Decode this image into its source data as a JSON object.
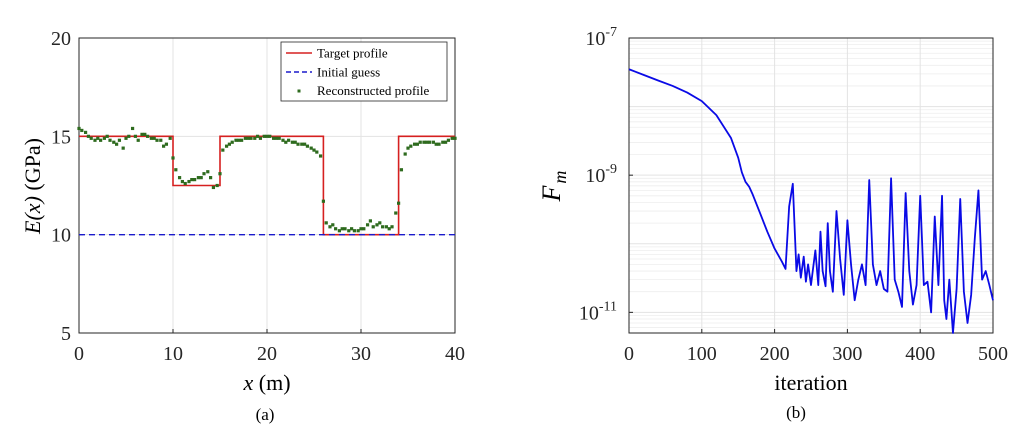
{
  "chart_data": [
    {
      "type": "line",
      "panel_label": "(a)",
      "xlabel_var": "x",
      "xlabel_unit": " (m)",
      "ylabel_var": "E(x)",
      "ylabel_unit": " (GPa)",
      "xlim": [
        0,
        40
      ],
      "ylim": [
        5,
        20
      ],
      "xticks": [
        0,
        10,
        20,
        30,
        40
      ],
      "yticks": [
        5,
        10,
        15,
        20
      ],
      "grid": true,
      "legend_position": "top-right",
      "colors": {
        "target": "#d62020",
        "initial": "#1a1acc",
        "reconstructed": "#2e6b1e"
      },
      "series": [
        {
          "name": "Target profile",
          "style": "solid-line",
          "x": [
            0,
            10,
            10,
            15,
            15,
            26,
            26,
            34,
            34,
            40
          ],
          "y": [
            15,
            15,
            12.5,
            12.5,
            15,
            15,
            10,
            10,
            15,
            15
          ]
        },
        {
          "name": "Initial guess",
          "style": "dashed-line",
          "x": [
            0,
            40
          ],
          "y": [
            10,
            10
          ]
        },
        {
          "name": "Reconstructed profile",
          "style": "dots",
          "x": [
            0,
            0.3,
            0.7,
            1.0,
            1.3,
            1.7,
            2.0,
            2.3,
            2.7,
            3.0,
            3.3,
            3.7,
            4.0,
            4.3,
            4.7,
            5.0,
            5.3,
            5.7,
            6.0,
            6.3,
            6.7,
            7.0,
            7.3,
            7.7,
            8.0,
            8.3,
            8.7,
            9.0,
            9.3,
            9.7,
            10.0,
            10.3,
            10.7,
            11.0,
            11.3,
            11.7,
            12.0,
            12.3,
            12.7,
            13.0,
            13.3,
            13.7,
            14.0,
            14.3,
            14.7,
            15.0,
            15.3,
            15.7,
            16.0,
            16.3,
            16.7,
            17.0,
            17.3,
            17.7,
            18.0,
            18.3,
            18.7,
            19.0,
            19.3,
            19.7,
            20.0,
            20.3,
            20.7,
            21.0,
            21.3,
            21.7,
            22.0,
            22.3,
            22.7,
            23.0,
            23.3,
            23.7,
            24.0,
            24.3,
            24.7,
            25.0,
            25.3,
            25.7,
            26.0,
            26.3,
            26.7,
            27.0,
            27.3,
            27.7,
            28.0,
            28.3,
            28.7,
            29.0,
            29.3,
            29.7,
            30.0,
            30.3,
            30.7,
            31.0,
            31.3,
            31.7,
            32.0,
            32.3,
            32.7,
            33.0,
            33.3,
            33.7,
            34.0,
            34.3,
            34.7,
            35.0,
            35.3,
            35.7,
            36.0,
            36.3,
            36.7,
            37.0,
            37.3,
            37.7,
            38.0,
            38.3,
            38.7,
            39.0,
            39.3,
            39.7,
            40.0
          ],
          "y": [
            15.4,
            15.3,
            15.2,
            15.0,
            14.9,
            14.8,
            14.9,
            14.8,
            14.9,
            15.0,
            14.8,
            14.7,
            14.6,
            14.8,
            14.4,
            14.9,
            15.0,
            15.4,
            15.0,
            14.8,
            15.1,
            15.1,
            15.0,
            14.9,
            14.9,
            14.8,
            14.8,
            14.5,
            14.6,
            14.9,
            13.9,
            13.3,
            12.9,
            12.7,
            12.6,
            12.7,
            12.8,
            12.8,
            12.9,
            12.9,
            13.1,
            13.2,
            12.9,
            12.4,
            12.5,
            13.1,
            14.3,
            14.5,
            14.6,
            14.7,
            14.8,
            14.8,
            14.8,
            14.9,
            14.9,
            14.9,
            14.9,
            15.0,
            14.9,
            15.0,
            15.0,
            15.0,
            14.9,
            14.9,
            14.9,
            14.8,
            14.7,
            14.8,
            14.7,
            14.7,
            14.6,
            14.6,
            14.6,
            14.5,
            14.4,
            14.3,
            14.2,
            14.0,
            11.7,
            10.6,
            10.4,
            10.5,
            10.3,
            10.2,
            10.3,
            10.3,
            10.2,
            10.3,
            10.2,
            10.2,
            10.3,
            10.3,
            10.5,
            10.7,
            10.4,
            10.5,
            10.6,
            10.4,
            10.4,
            10.3,
            10.4,
            11.1,
            11.6,
            13.3,
            14.1,
            14.4,
            14.5,
            14.6,
            14.6,
            14.7,
            14.7,
            14.7,
            14.7,
            14.7,
            14.6,
            14.6,
            14.7,
            14.7,
            14.8,
            14.9,
            14.9
          ]
        }
      ]
    },
    {
      "type": "line",
      "panel_label": "(b)",
      "xlabel": "iteration",
      "ylabel_base": "F",
      "ylabel_sub": "m",
      "xlim": [
        0,
        500
      ],
      "ylim": [
        5e-12,
        1e-07
      ],
      "yscale": "log",
      "xticks": [
        0,
        100,
        200,
        300,
        400,
        500
      ],
      "yticks": [
        {
          "base": "10",
          "exp": "-7",
          "value": 1e-07
        },
        {
          "base": "10",
          "exp": "-9",
          "value": 1e-09
        },
        {
          "base": "10",
          "exp": "-11",
          "value": 1e-11
        }
      ],
      "grid": true,
      "color": "#0a0ae6",
      "series": [
        {
          "x": [
            0,
            20,
            40,
            60,
            80,
            100,
            120,
            140,
            150,
            155,
            160,
            165,
            170,
            180,
            190,
            200,
            210,
            215,
            220,
            225,
            230,
            233,
            236,
            240,
            243,
            246,
            250,
            253,
            256,
            260,
            263,
            266,
            270,
            273,
            276,
            280,
            285,
            290,
            295,
            300,
            305,
            310,
            315,
            320,
            325,
            330,
            335,
            340,
            345,
            350,
            355,
            360,
            365,
            370,
            375,
            380,
            385,
            390,
            395,
            400,
            405,
            410,
            415,
            420,
            425,
            430,
            433,
            436,
            440,
            445,
            450,
            455,
            460,
            465,
            470,
            475,
            480,
            485,
            490,
            495,
            500
          ],
          "y": [
            3.5e-08,
            2.9e-08,
            2.4e-08,
            2e-08,
            1.6e-08,
            1.2e-08,
            7.5e-09,
            3.5e-09,
            1.8e-09,
            1.1e-09,
            8e-10,
            6.8e-10,
            5.2e-10,
            2.8e-10,
            1.5e-10,
            8.5e-11,
            5.5e-11,
            4.3e-11,
            3.5e-10,
            7.5e-10,
            4e-11,
            7e-11,
            3.2e-11,
            6.5e-11,
            2.8e-11,
            5e-11,
            2.5e-11,
            4.5e-11,
            8e-11,
            2.5e-11,
            1.5e-10,
            4e-11,
            2.4e-11,
            2e-10,
            4e-11,
            2e-11,
            3e-10,
            6e-11,
            1.8e-11,
            2.2e-10,
            5e-11,
            1.5e-11,
            3e-11,
            5e-11,
            2.5e-11,
            8.5e-10,
            5e-11,
            2.5e-11,
            4e-11,
            2.2e-11,
            2e-11,
            9e-10,
            3e-11,
            2e-11,
            1.2e-11,
            5.5e-10,
            4e-11,
            1.3e-11,
            2.5e-11,
            5e-10,
            2.5e-11,
            2.8e-11,
            1e-11,
            2.5e-10,
            2.5e-11,
            5e-10,
            1.5e-11,
            8e-12,
            3e-11,
            5e-12,
            2.2e-11,
            4.5e-10,
            2e-11,
            7e-12,
            1.8e-11,
            1.2e-10,
            6e-10,
            3e-11,
            4e-11,
            2.5e-11,
            1.5e-11
          ]
        }
      ]
    }
  ]
}
